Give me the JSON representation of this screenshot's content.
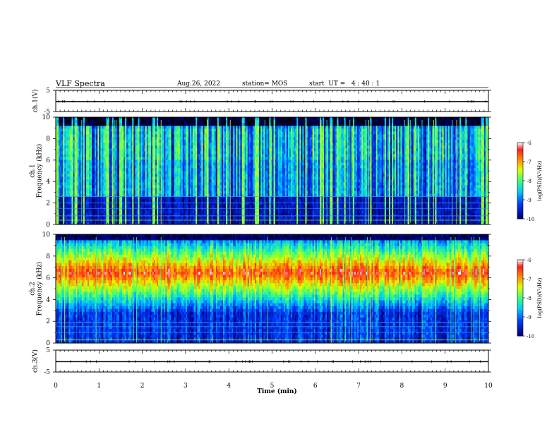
{
  "header": {
    "title": "VLF Spectra",
    "date": "Aug.26, 2022",
    "station": "station= MOS",
    "start": "start  UT =   4 : 40 : 1"
  },
  "colorbar": {
    "label": "log(PSD)(V²/Hz)",
    "ticks": [
      "-6",
      "-7",
      "-8",
      "-9",
      "-10"
    ]
  },
  "chart_data": [
    {
      "type": "line",
      "name": "ch1-voltage",
      "ylabel": "ch.1(V)",
      "ylim": [
        -5,
        5
      ],
      "yticks": [
        "5",
        "-5"
      ],
      "values": [
        -0.3
      ]
    },
    {
      "type": "heatmap",
      "name": "ch1-spectrogram",
      "ylabel": "ch.1\nFrequency  (kHz)",
      "ylim": [
        0,
        10
      ],
      "yticks": [
        "0",
        "2",
        "4",
        "6",
        "8",
        "10"
      ],
      "zlim": [
        -10,
        -6
      ],
      "colorbar_label": "log(PSD)(V²/Hz)"
    },
    {
      "type": "heatmap",
      "name": "ch2-spectrogram",
      "ylabel": "ch.2\nFrequency  (kHz)",
      "ylim": [
        0,
        10
      ],
      "yticks": [
        "0",
        "2",
        "4",
        "6",
        "8",
        "10"
      ],
      "zlim": [
        -10,
        -6
      ],
      "colorbar_label": "log(PSD)(V²/Hz)"
    },
    {
      "type": "line",
      "name": "ch3-voltage",
      "ylabel": "ch.3(V)",
      "ylim": [
        -5,
        5
      ],
      "yticks": [
        "5",
        "-5"
      ],
      "values": [
        -0.3
      ]
    }
  ],
  "xaxis": {
    "label": "Time  (min)",
    "xlim": [
      0,
      10
    ],
    "ticks": [
      "0",
      "1",
      "2",
      "3",
      "4",
      "5",
      "6",
      "7",
      "8",
      "9",
      "10"
    ]
  }
}
